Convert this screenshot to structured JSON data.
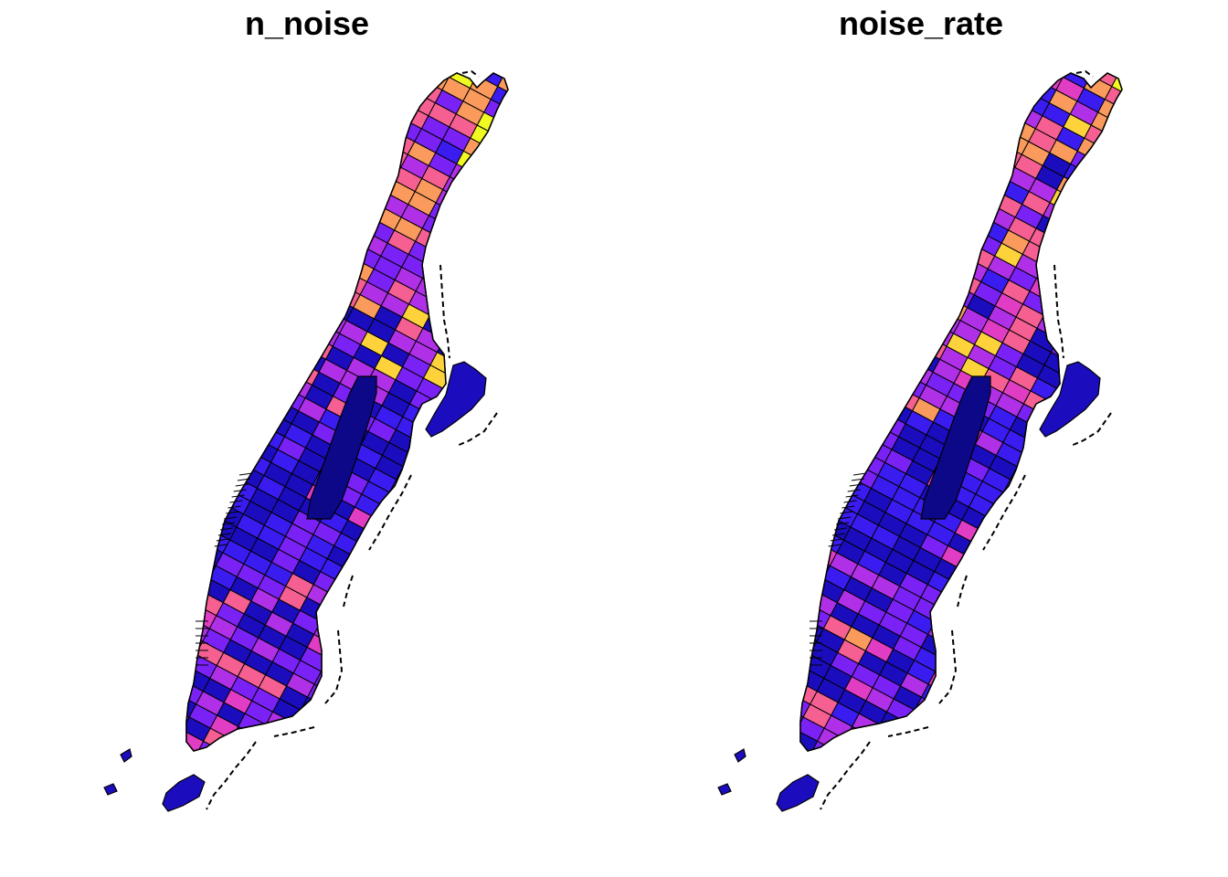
{
  "panels": [
    {
      "title": "n_noise"
    },
    {
      "title": "noise_rate"
    }
  ],
  "palette": [
    "#0D0887",
    "#1B0DBE",
    "#3A1CF0",
    "#7A22F5",
    "#B030E8",
    "#E03DC4",
    "#F55F92",
    "#FA9A5C",
    "#FDD23A",
    "#F0F921"
  ],
  "background": "#ffffff",
  "boundary_color": "#000000",
  "map_data": {
    "fill_scale": "plasma-like (dark blue low → yellow high)",
    "legend": "none"
  }
}
